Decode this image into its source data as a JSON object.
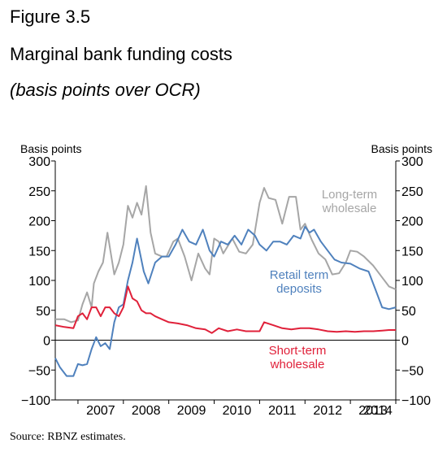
{
  "figure": {
    "number": "Figure 3.5",
    "title": "Marginal bank funding costs",
    "subtitle": "(basis points over OCR)",
    "source": "Source: RBNZ estimates."
  },
  "chart_data": {
    "type": "line",
    "title": "Marginal bank funding costs",
    "subtitle": "(basis points over OCR)",
    "ylabel_left": "Basis points",
    "ylabel_right": "Basis points",
    "ylim": [
      -100,
      300
    ],
    "yticks": [
      -100,
      -50,
      0,
      50,
      100,
      150,
      200,
      250,
      300
    ],
    "xlim": [
      2006.5,
      2014.0
    ],
    "xticks": [
      "2007",
      "2008",
      "2009",
      "2010",
      "2011",
      "2012",
      "2013",
      "2014"
    ],
    "grid": false,
    "zero_line": true,
    "series": [
      {
        "name": "Long-term wholesale",
        "label_lines": [
          "Long-term",
          "wholesale"
        ],
        "color": "#a6a6a6",
        "x": [
          2006.5,
          2006.7,
          2006.85,
          2007.0,
          2007.1,
          2007.2,
          2007.3,
          2007.35,
          2007.45,
          2007.55,
          2007.65,
          2007.8,
          2007.9,
          2008.0,
          2008.1,
          2008.2,
          2008.3,
          2008.4,
          2008.5,
          2008.6,
          2008.7,
          2008.85,
          2008.95,
          2009.1,
          2009.2,
          2009.35,
          2009.5,
          2009.65,
          2009.8,
          2009.9,
          2010.0,
          2010.1,
          2010.2,
          2010.4,
          2010.55,
          2010.7,
          2010.85,
          2011.0,
          2011.1,
          2011.2,
          2011.35,
          2011.5,
          2011.65,
          2011.8,
          2011.9,
          2012.0,
          2012.15,
          2012.3,
          2012.45,
          2012.6,
          2012.75,
          2012.9,
          2013.0,
          2013.15,
          2013.3,
          2013.5,
          2013.7,
          2013.85,
          2014.0
        ],
        "y": [
          35,
          35,
          30,
          33,
          60,
          80,
          55,
          95,
          115,
          130,
          180,
          110,
          130,
          160,
          225,
          205,
          230,
          210,
          258,
          180,
          145,
          140,
          140,
          165,
          170,
          140,
          100,
          145,
          120,
          110,
          170,
          165,
          145,
          170,
          148,
          145,
          160,
          230,
          255,
          238,
          235,
          195,
          240,
          240,
          185,
          195,
          168,
          145,
          135,
          110,
          112,
          130,
          150,
          148,
          140,
          125,
          105,
          90,
          85
        ]
      },
      {
        "name": "Retail term deposits",
        "label_lines": [
          "Retail term",
          "deposits"
        ],
        "color": "#4f81bd",
        "x": [
          2006.5,
          2006.6,
          2006.75,
          2006.9,
          2007.0,
          2007.1,
          2007.2,
          2007.3,
          2007.4,
          2007.5,
          2007.6,
          2007.7,
          2007.8,
          2007.9,
          2008.0,
          2008.1,
          2008.2,
          2008.3,
          2008.45,
          2008.55,
          2008.7,
          2008.85,
          2009.0,
          2009.15,
          2009.3,
          2009.45,
          2009.6,
          2009.75,
          2009.9,
          2010.0,
          2010.15,
          2010.3,
          2010.45,
          2010.6,
          2010.75,
          2010.9,
          2011.0,
          2011.15,
          2011.3,
          2011.45,
          2011.6,
          2011.75,
          2011.9,
          2012.0,
          2012.1,
          2012.2,
          2012.35,
          2012.5,
          2012.65,
          2012.8,
          2013.0,
          2013.2,
          2013.4,
          2013.55,
          2013.7,
          2013.85,
          2014.0
        ],
        "y": [
          -30,
          -45,
          -60,
          -60,
          -40,
          -42,
          -40,
          -15,
          5,
          -10,
          -5,
          -15,
          30,
          55,
          60,
          100,
          130,
          170,
          115,
          95,
          130,
          140,
          140,
          160,
          185,
          165,
          160,
          185,
          150,
          140,
          165,
          160,
          175,
          160,
          185,
          175,
          160,
          150,
          165,
          165,
          160,
          175,
          170,
          190,
          180,
          185,
          165,
          150,
          135,
          130,
          128,
          120,
          115,
          85,
          55,
          52,
          55
        ]
      },
      {
        "name": "Short-term wholesale",
        "label_lines": [
          "Short-term",
          "wholesale"
        ],
        "color": "#e0213a",
        "x": [
          2006.5,
          2006.7,
          2006.9,
          2007.0,
          2007.1,
          2007.2,
          2007.3,
          2007.4,
          2007.5,
          2007.6,
          2007.7,
          2007.8,
          2007.9,
          2008.0,
          2008.1,
          2008.2,
          2008.3,
          2008.4,
          2008.5,
          2008.6,
          2008.7,
          2008.85,
          2009.0,
          2009.2,
          2009.4,
          2009.6,
          2009.8,
          2009.95,
          2010.1,
          2010.3,
          2010.5,
          2010.7,
          2010.9,
          2011.0,
          2011.1,
          2011.3,
          2011.5,
          2011.7,
          2011.9,
          2012.1,
          2012.3,
          2012.5,
          2012.7,
          2012.9,
          2013.1,
          2013.3,
          2013.5,
          2013.7,
          2013.85,
          2014.0
        ],
        "y": [
          25,
          22,
          20,
          40,
          45,
          35,
          55,
          55,
          40,
          55,
          55,
          45,
          40,
          55,
          90,
          70,
          65,
          50,
          45,
          45,
          40,
          35,
          30,
          28,
          25,
          20,
          18,
          12,
          20,
          15,
          18,
          15,
          15,
          15,
          30,
          25,
          20,
          18,
          20,
          20,
          18,
          15,
          14,
          15,
          14,
          15,
          15,
          16,
          17,
          17
        ]
      }
    ]
  }
}
